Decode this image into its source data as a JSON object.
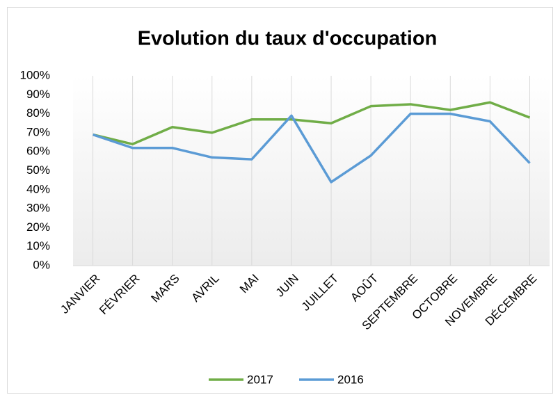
{
  "chart_data": {
    "type": "line",
    "title": "Evolution du taux d'occupation",
    "categories": [
      "JANVIER",
      "FÉVRIER",
      "MARS",
      "AVRIL",
      "MAI",
      "JUIN",
      "JUILLET",
      "AOÛT",
      "SEPTEMBRE",
      "OCTOBRE",
      "NOVEMBRE",
      "DÉCEMBRE"
    ],
    "series": [
      {
        "name": "2017",
        "color": "#70ad47",
        "values": [
          69,
          64,
          73,
          70,
          77,
          77,
          75,
          84,
          85,
          82,
          86,
          78
        ]
      },
      {
        "name": "2016",
        "color": "#5b9bd5",
        "values": [
          69,
          62,
          62,
          57,
          56,
          79,
          44,
          58,
          80,
          80,
          76,
          54
        ]
      }
    ],
    "ylim": [
      0,
      100
    ],
    "yticks": [
      {
        "value": 0,
        "label": "0%"
      },
      {
        "value": 10,
        "label": "10%"
      },
      {
        "value": 20,
        "label": "20%"
      },
      {
        "value": 30,
        "label": "30%"
      },
      {
        "value": 40,
        "label": "40%"
      },
      {
        "value": 50,
        "label": "50%"
      },
      {
        "value": 60,
        "label": "60%"
      },
      {
        "value": 70,
        "label": "70%"
      },
      {
        "value": 80,
        "label": "80%"
      },
      {
        "value": 90,
        "label": "90%"
      },
      {
        "value": 100,
        "label": "100%"
      }
    ],
    "xgrid": true,
    "legend": "bottom"
  }
}
